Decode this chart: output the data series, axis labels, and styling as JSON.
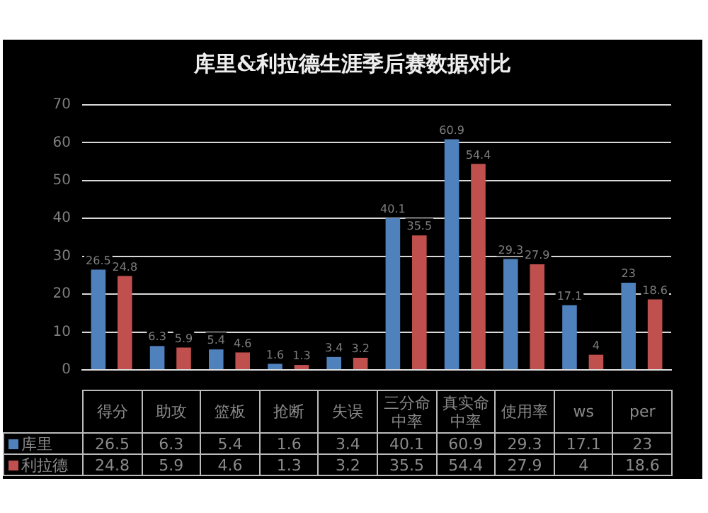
{
  "chart_data": [
    {
      "type": "bar",
      "title": "库里&利拉德生涯季后赛数据对比",
      "categories": [
        "得分",
        "助攻",
        "篮板",
        "抢断",
        "失误",
        "三分命中率",
        "真实命中率",
        "使用率",
        "ws",
        "per"
      ],
      "series": [
        {
          "name": "库里",
          "color": "#4f81bd",
          "values": [
            26.5,
            6.3,
            5.4,
            1.6,
            3.4,
            40.1,
            60.9,
            29.3,
            17.1,
            23
          ],
          "value_labels": [
            "26.5",
            "6.3",
            "5.4",
            "1.6",
            "3.4",
            "40.1",
            "60.9",
            "29.3",
            "17.1",
            "23"
          ]
        },
        {
          "name": "利拉德",
          "color": "#c0504d",
          "values": [
            24.8,
            5.9,
            4.6,
            1.3,
            3.2,
            35.5,
            54.4,
            27.9,
            4,
            18.6
          ],
          "value_labels": [
            "24.8",
            "5.9",
            "4.6",
            "1.3",
            "3.2",
            "35.5",
            "54.4",
            "27.9",
            "4",
            "18.6"
          ]
        }
      ],
      "ylim": [
        0,
        70
      ],
      "yticks": [
        0,
        10,
        20,
        30,
        40,
        50,
        60,
        70
      ],
      "grid": "y",
      "legend": "bottom left"
    },
    {
      "type": "other",
      "annotations": [
        "26.5",
        "6.3",
        "5.4",
        "1.6",
        "3.4",
        "40.1",
        "60.9",
        "29.3",
        "17.1",
        "23",
        "24.8",
        "5.9",
        "4.6",
        "1.3",
        "3.2",
        "35.5",
        "54.4",
        "27.9",
        "4",
        "18.6"
      ]
    }
  ]
}
